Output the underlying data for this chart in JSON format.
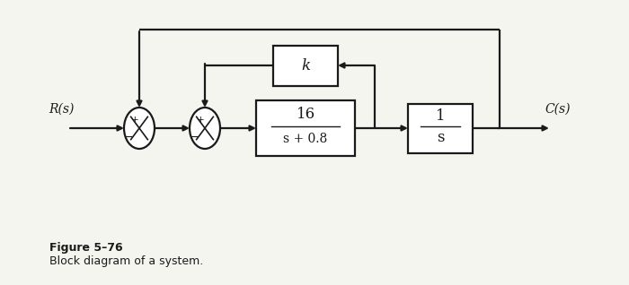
{
  "bg_color": "#f5f5f0",
  "line_color": "#1a1a1a",
  "fig_width": 7.0,
  "fig_height": 3.18,
  "caption_bold": "Figure 5–76",
  "caption_normal": "Block diagram of a system.",
  "R_label": "R(s)",
  "C_label": "C(s)",
  "block1_label_num": "16",
  "block1_label_den": "s + 0.8",
  "block2_label_num": "1",
  "block2_label_den": "s",
  "block3_label": "k",
  "sum1_signs": [
    "+",
    "−"
  ],
  "sum2_signs": [
    "+",
    "−"
  ]
}
